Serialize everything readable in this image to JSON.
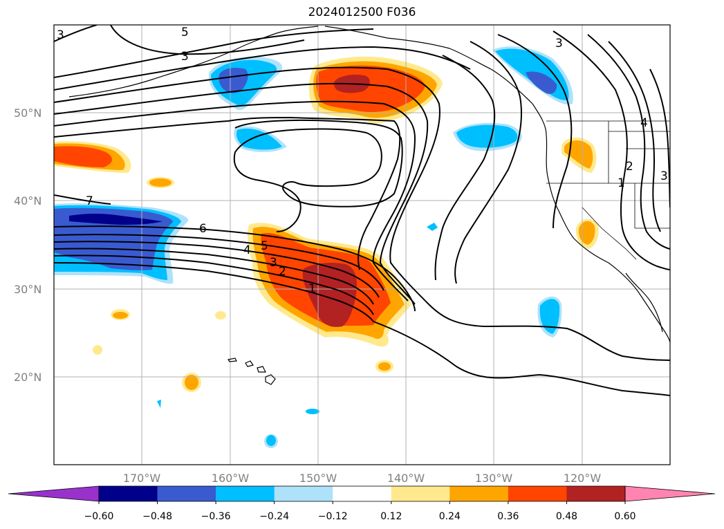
{
  "title": "2024012500 F036",
  "map": {
    "lat_labels": [
      "50°N",
      "40°N",
      "30°N",
      "20°N"
    ],
    "lon_labels": [
      "170°W",
      "160°W",
      "150°W",
      "140°W",
      "130°W",
      "120°W"
    ],
    "contour_labels": [
      "5",
      "3",
      "3",
      "3",
      "7",
      "6",
      "5",
      "4",
      "3",
      "2",
      "1",
      "4",
      "2",
      "1",
      "3"
    ]
  },
  "colorbar": {
    "ticks": [
      "−0.60",
      "−0.48",
      "−0.36",
      "−0.24",
      "−0.12",
      "0.12",
      "0.24",
      "0.36",
      "0.48",
      "0.60"
    ],
    "colors": [
      "#9932cc",
      "#00008b",
      "#3a5bd0",
      "#00bfff",
      "#aee2fb",
      "#ffffff",
      "#ffe98c",
      "#ffa500",
      "#ff4500",
      "#b22222",
      "#ff85b0"
    ]
  },
  "colors": {
    "dark_red": "#b22222",
    "red_orange": "#ff4500",
    "orange": "#ffa500",
    "yellow": "#ffe98c",
    "light_blue": "#aee2fb",
    "sky_blue": "#00bfff",
    "royal_blue": "#3a5bd0",
    "navy": "#00008b",
    "grid": "#b0b0b0"
  }
}
